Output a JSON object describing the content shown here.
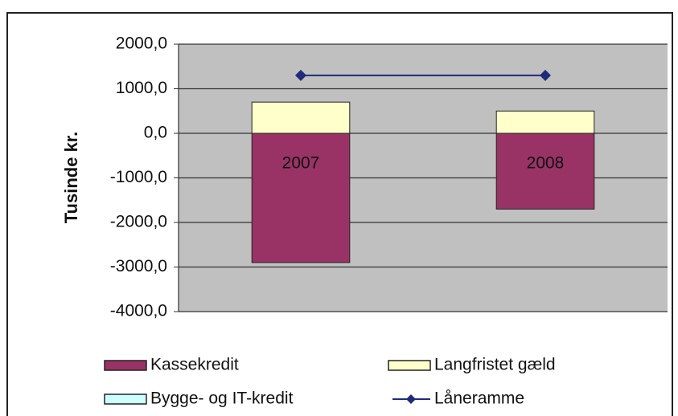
{
  "chart_data": {
    "type": "bar",
    "stacked": true,
    "y_label": "Tusinde kr.",
    "categories": [
      "2007",
      "2008"
    ],
    "series": [
      {
        "name": "Kassekredit",
        "color": "#993366",
        "values": [
          -2900,
          -1700
        ]
      },
      {
        "name": "Langfristet gæld",
        "color": "#ffffcc",
        "values": [
          700,
          500
        ]
      },
      {
        "name": "Bygge- og IT-kredit",
        "color": "#ccffff",
        "values": [
          0,
          0
        ]
      },
      {
        "name": "Låneramme",
        "type": "line",
        "color": "#1f2a7a",
        "values": [
          1300,
          1300
        ]
      }
    ],
    "ylim": [
      -4000,
      2000
    ],
    "yticks": [
      {
        "value": -4000,
        "label": "-4000,0"
      },
      {
        "value": -3000,
        "label": "-3000,0"
      },
      {
        "value": -2000,
        "label": "-2000,0"
      },
      {
        "value": -1000,
        "label": "-1000,0"
      },
      {
        "value": 0,
        "label": "0,0"
      },
      {
        "value": 1000,
        "label": "1000,0"
      },
      {
        "value": 2000,
        "label": "2000,0"
      }
    ],
    "grid": true
  }
}
